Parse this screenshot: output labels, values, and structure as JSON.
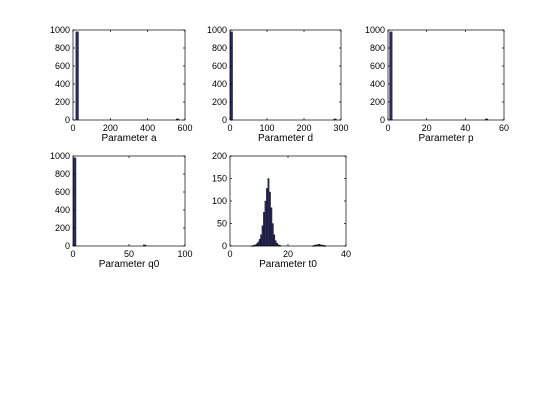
{
  "chart_data": [
    {
      "type": "bar",
      "xlabel": "Parameter a",
      "xlim": [
        0,
        600
      ],
      "ylim": [
        0,
        1000
      ],
      "xticks": [
        0,
        200,
        400,
        600
      ],
      "yticks": [
        0,
        200,
        400,
        600,
        800,
        1000
      ],
      "bin_width": 15,
      "bars": [
        {
          "x": 22,
          "value": 980
        },
        {
          "x": 560,
          "value": 12
        }
      ],
      "color": "#2b2a5e"
    },
    {
      "type": "bar",
      "xlabel": "Parameter d",
      "xlim": [
        0,
        300
      ],
      "ylim": [
        0,
        1000
      ],
      "xticks": [
        0,
        100,
        200,
        300
      ],
      "yticks": [
        0,
        200,
        400,
        600,
        800,
        1000
      ],
      "bin_width": 7,
      "bars": [
        {
          "x": 3.5,
          "value": 980
        },
        {
          "x": 284,
          "value": 12
        }
      ],
      "color": "#2b2a5e"
    },
    {
      "type": "bar",
      "xlabel": "Parameter p",
      "xlim": [
        0,
        60
      ],
      "ylim": [
        0,
        1000
      ],
      "xticks": [
        0,
        20,
        40,
        60
      ],
      "yticks": [
        0,
        200,
        400,
        600,
        800,
        1000
      ],
      "bin_width": 1.4,
      "bars": [
        {
          "x": 1.5,
          "value": 980
        },
        {
          "x": 51,
          "value": 12
        }
      ],
      "color": "#2b2a5e"
    },
    {
      "type": "bar",
      "xlabel": "Parameter q0",
      "xlim": [
        0,
        100
      ],
      "ylim": [
        0,
        1000
      ],
      "xticks": [
        0,
        50,
        100
      ],
      "yticks": [
        0,
        200,
        400,
        600,
        800,
        1000
      ],
      "bin_width": 2.4,
      "bars": [
        {
          "x": 1.5,
          "value": 980
        },
        {
          "x": 64,
          "value": 12
        }
      ],
      "color": "#2b2a5e"
    },
    {
      "type": "bar",
      "xlabel": "Parameter t0",
      "xlim": [
        0,
        40
      ],
      "ylim": [
        0,
        200
      ],
      "xticks": [
        0,
        20,
        40
      ],
      "yticks": [
        0,
        50,
        100,
        150,
        200
      ],
      "bin_width": 0.5,
      "bars": [
        {
          "x": 7.75,
          "value": 1
        },
        {
          "x": 8.25,
          "value": 2
        },
        {
          "x": 8.75,
          "value": 3
        },
        {
          "x": 9.25,
          "value": 5
        },
        {
          "x": 9.75,
          "value": 9
        },
        {
          "x": 10.25,
          "value": 15
        },
        {
          "x": 10.75,
          "value": 25
        },
        {
          "x": 11.25,
          "value": 45
        },
        {
          "x": 11.75,
          "value": 75
        },
        {
          "x": 12.25,
          "value": 100
        },
        {
          "x": 12.75,
          "value": 128
        },
        {
          "x": 13.25,
          "value": 150
        },
        {
          "x": 13.75,
          "value": 120
        },
        {
          "x": 14.25,
          "value": 85
        },
        {
          "x": 14.75,
          "value": 50
        },
        {
          "x": 15.25,
          "value": 25
        },
        {
          "x": 15.75,
          "value": 12
        },
        {
          "x": 16.25,
          "value": 6
        },
        {
          "x": 16.75,
          "value": 3
        },
        {
          "x": 17.25,
          "value": 2
        },
        {
          "x": 28.75,
          "value": 1
        },
        {
          "x": 29.25,
          "value": 2
        },
        {
          "x": 29.75,
          "value": 3
        },
        {
          "x": 30.25,
          "value": 3
        },
        {
          "x": 30.75,
          "value": 4
        },
        {
          "x": 31.25,
          "value": 3
        },
        {
          "x": 31.75,
          "value": 2
        },
        {
          "x": 32.25,
          "value": 2
        },
        {
          "x": 32.75,
          "value": 1
        }
      ],
      "color": "#2b2a5e"
    }
  ]
}
